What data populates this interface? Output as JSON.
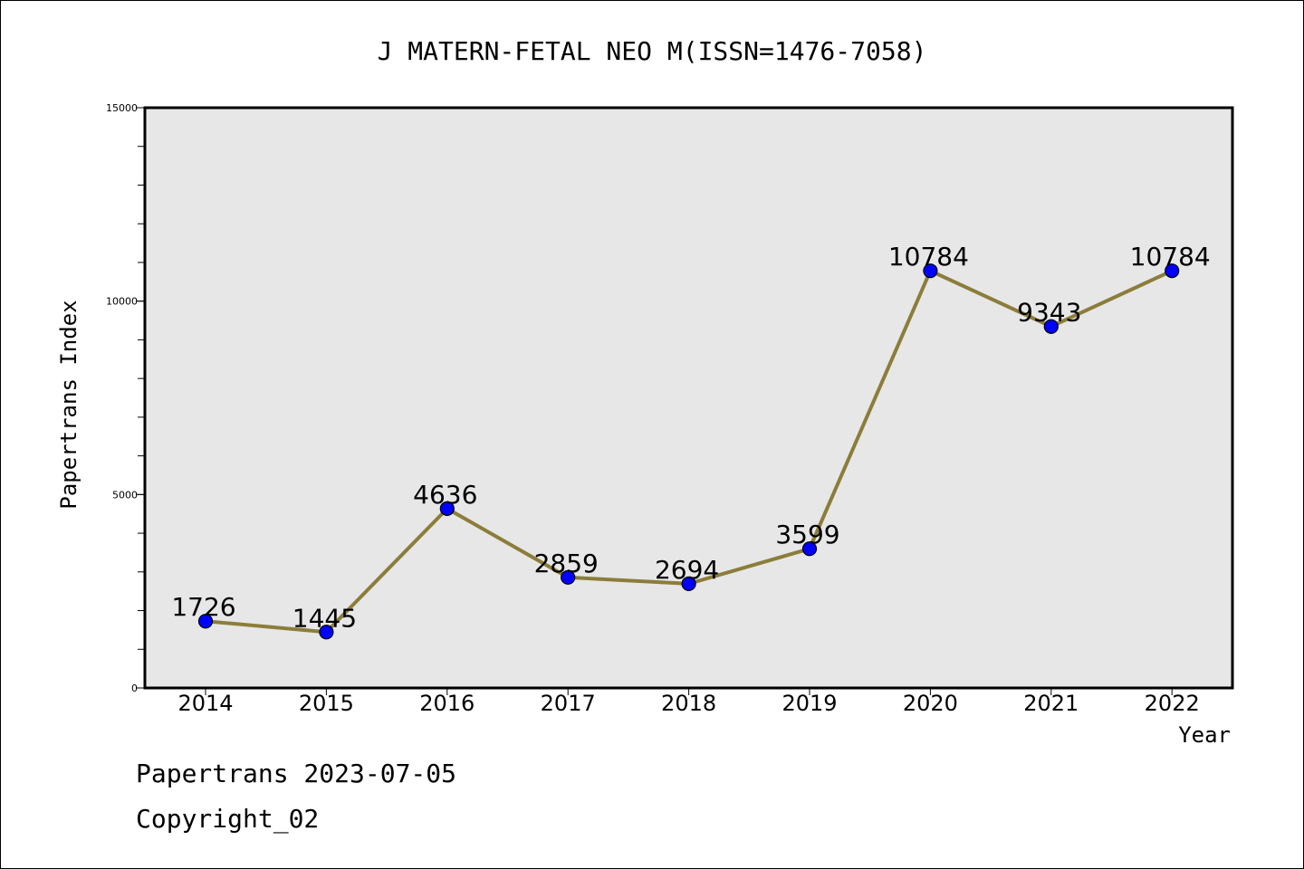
{
  "chart_data": {
    "type": "line",
    "title": "J MATERN-FETAL NEO M(ISSN=1476-7058)",
    "xlabel": "Year",
    "ylabel": "Papertrans Index",
    "categories": [
      "2014",
      "2015",
      "2016",
      "2017",
      "2018",
      "2019",
      "2020",
      "2021",
      "2022"
    ],
    "values": [
      1726,
      1445,
      4636,
      2859,
      2694,
      3599,
      10784,
      9343,
      10784
    ],
    "value_labels": [
      "1726",
      "1445",
      "4636",
      "2859",
      "2694",
      "3599",
      "10784",
      "9343",
      "10784"
    ],
    "ylim": [
      0,
      15000
    ],
    "yticks": [
      0,
      5000,
      10000,
      15000
    ],
    "ytick_labels": [
      "0",
      "5000",
      "10000",
      "15000"
    ],
    "y_minor_step": 1000,
    "grid": false,
    "colors": {
      "line": "#8b7d3a",
      "marker": "#0000ff",
      "plot_background": "#e7e7e7"
    }
  },
  "footer": {
    "date_line": "Papertrans 2023-07-05",
    "copyright_line": "Copyright_02"
  }
}
